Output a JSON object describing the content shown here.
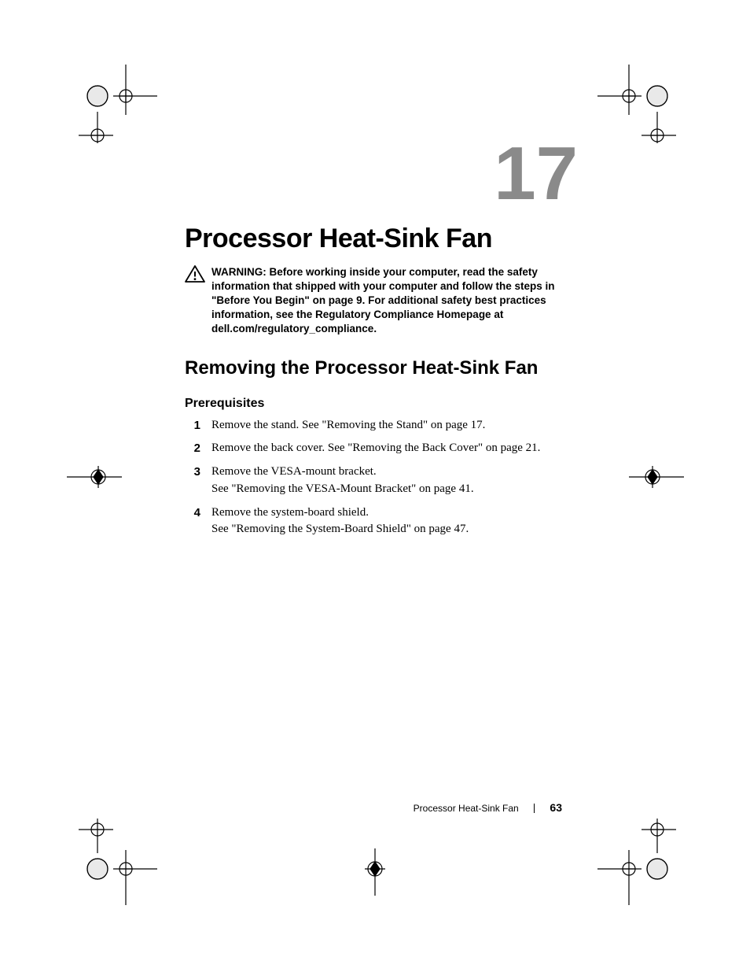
{
  "chapter": {
    "number": "17",
    "title": "Processor Heat-Sink Fan",
    "number_color": "#8a8a8a"
  },
  "warning": {
    "lead": "WARNING:",
    "text": "Before working inside your computer, read the safety information that shipped with your computer and follow the steps in \"Before You Begin\" on page 9. For additional safety best practices information, see the Regulatory Compliance Homepage at dell.com/regulatory_compliance."
  },
  "section": {
    "heading": "Removing the Processor Heat-Sink Fan"
  },
  "subsection": {
    "heading": "Prerequisites"
  },
  "steps": [
    {
      "n": "1",
      "text": "Remove the stand. See \"Removing the Stand\" on page 17."
    },
    {
      "n": "2",
      "text": "Remove the back cover. See \"Removing the Back Cover\" on page 21."
    },
    {
      "n": "3",
      "text": "Remove the VESA-mount bracket.\nSee \"Removing the VESA-Mount Bracket\" on page 41."
    },
    {
      "n": "4",
      "text": "Remove the system-board shield.\nSee \"Removing the System-Board Shield\" on page 47."
    }
  ],
  "footer": {
    "section_name": "Processor Heat-Sink Fan",
    "page_number": "63"
  },
  "style": {
    "page_bg": "#ffffff",
    "body_font": "Times New Roman",
    "heading_font": "Arial Narrow",
    "title_fontsize_pt": 26,
    "chapnum_fontsize_pt": 72,
    "section_fontsize_pt": 18,
    "subsection_fontsize_pt": 12,
    "warning_fontsize_pt": 10,
    "body_fontsize_pt": 11
  }
}
